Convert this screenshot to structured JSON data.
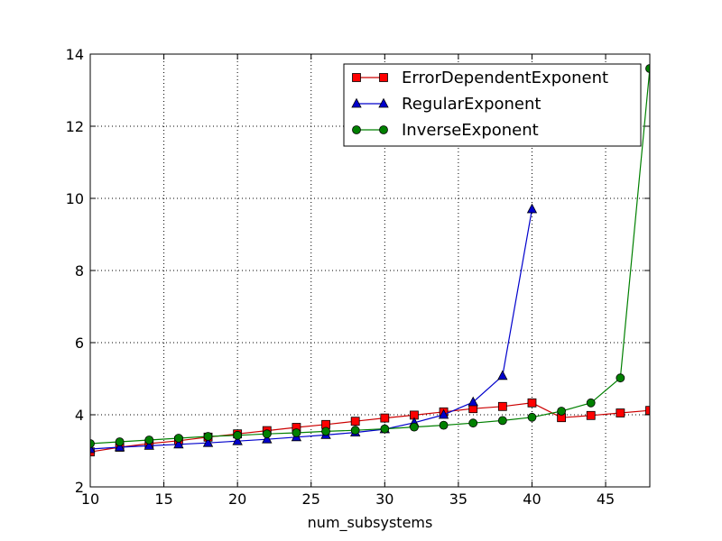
{
  "chart_data": {
    "type": "line",
    "title": "",
    "xlabel": "num_subsystems",
    "ylabel": "",
    "xlim": [
      10,
      48
    ],
    "ylim": [
      2,
      14
    ],
    "xticks": [
      10,
      15,
      20,
      25,
      30,
      35,
      40,
      45
    ],
    "yticks": [
      2,
      4,
      6,
      8,
      10,
      12,
      14
    ],
    "grid": true,
    "legend_position": "top-right",
    "series": [
      {
        "name": "ErrorDependentExponent",
        "color": "#ff0000",
        "line_color": "#cc0000",
        "marker": "square",
        "x": [
          10,
          12,
          14,
          16,
          18,
          20,
          22,
          24,
          26,
          28,
          30,
          32,
          34,
          36,
          38,
          40,
          42,
          44,
          46,
          48
        ],
        "y": [
          2.97,
          3.1,
          3.2,
          3.28,
          3.38,
          3.47,
          3.56,
          3.65,
          3.73,
          3.82,
          3.91,
          3.99,
          4.08,
          4.17,
          4.23,
          4.33,
          3.92,
          3.98,
          4.05,
          4.12
        ]
      },
      {
        "name": "RegularExponent",
        "color": "#0000cc",
        "line_color": "#0000cc",
        "marker": "triangle",
        "x": [
          10,
          12,
          14,
          16,
          18,
          20,
          22,
          24,
          26,
          28,
          30,
          32,
          34,
          36,
          38,
          40
        ],
        "y": [
          3.05,
          3.1,
          3.14,
          3.18,
          3.22,
          3.27,
          3.32,
          3.38,
          3.44,
          3.51,
          3.6,
          3.78,
          4.0,
          4.35,
          5.08,
          9.7
        ]
      },
      {
        "name": "InverseExponent",
        "color": "#008000",
        "line_color": "#008000",
        "marker": "circle",
        "x": [
          10,
          12,
          14,
          16,
          18,
          20,
          22,
          24,
          26,
          28,
          30,
          32,
          34,
          36,
          38,
          40,
          42,
          44,
          46,
          48
        ],
        "y": [
          3.2,
          3.25,
          3.3,
          3.35,
          3.4,
          3.43,
          3.47,
          3.5,
          3.54,
          3.57,
          3.61,
          3.66,
          3.71,
          3.77,
          3.84,
          3.93,
          4.1,
          4.33,
          5.02,
          13.6
        ]
      }
    ]
  }
}
